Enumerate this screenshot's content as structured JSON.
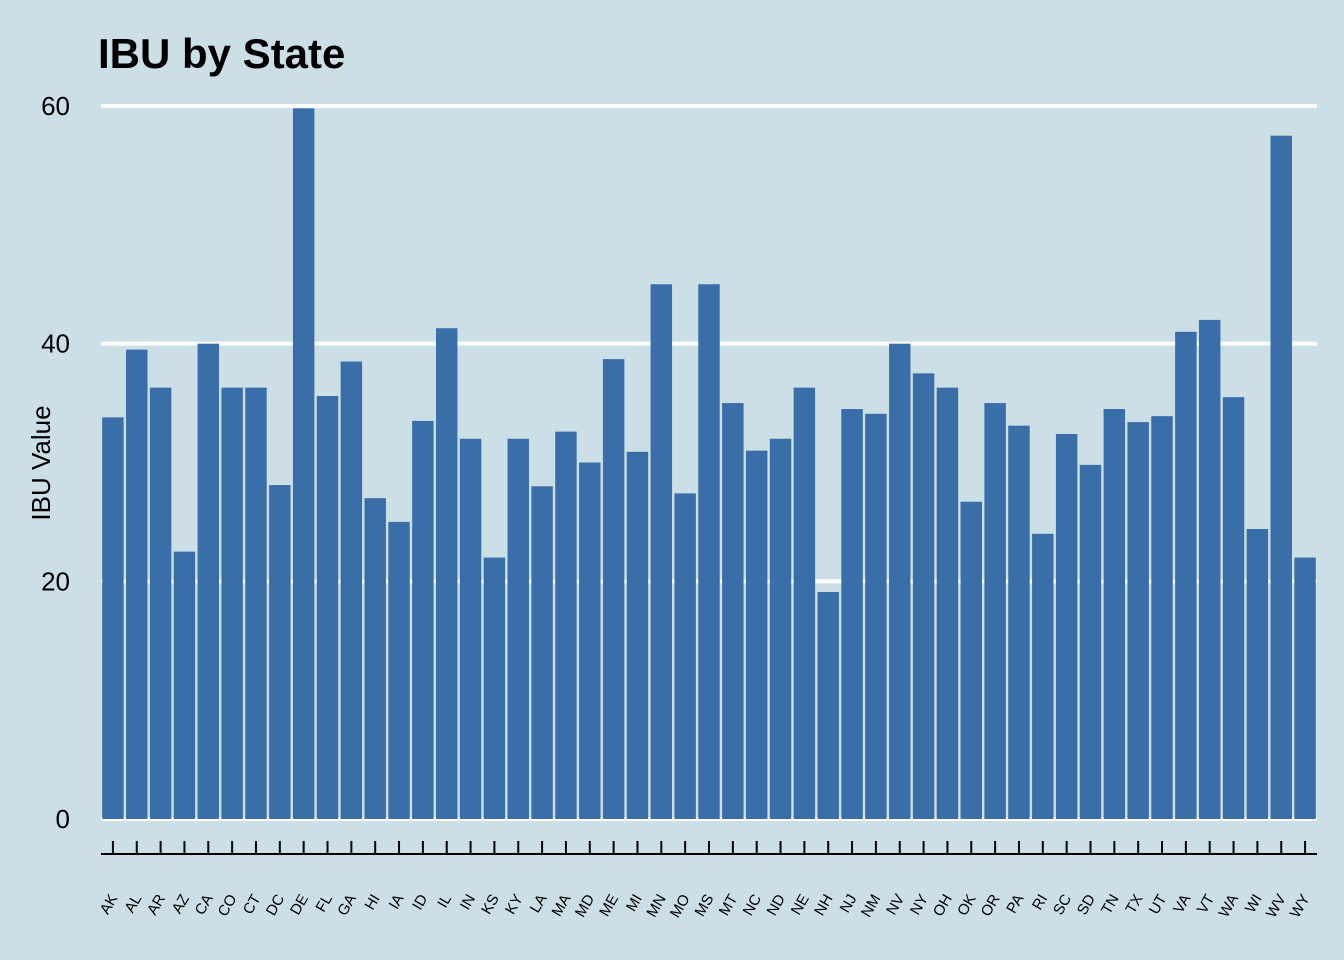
{
  "chart_data": {
    "type": "bar",
    "title": "IBU by State",
    "xlabel": "",
    "ylabel": "IBU Value",
    "ylim": [
      0,
      60
    ],
    "yticks": [
      0,
      20,
      40,
      60
    ],
    "grid": "horizontal",
    "bar_color": "#3a6ea8",
    "background_color": "#cddfe6",
    "categories": [
      "AK",
      "AL",
      "AR",
      "AZ",
      "CA",
      "CO",
      "CT",
      "DC",
      "DE",
      "FL",
      "GA",
      "HI",
      "IA",
      "ID",
      "IL",
      "IN",
      "KS",
      "KY",
      "LA",
      "MA",
      "MD",
      "ME",
      "MI",
      "MN",
      "MO",
      "MS",
      "MT",
      "NC",
      "ND",
      "NE",
      "NH",
      "NJ",
      "NM",
      "NV",
      "NY",
      "OH",
      "OK",
      "OR",
      "PA",
      "RI",
      "SC",
      "SD",
      "TN",
      "TX",
      "UT",
      "VA",
      "VT",
      "WA",
      "WI",
      "WV",
      "WY"
    ],
    "values": [
      33.8,
      39.5,
      36.3,
      22.5,
      40,
      36.3,
      36.3,
      28.1,
      59.8,
      35.6,
      38.5,
      27,
      25,
      33.5,
      41.3,
      32,
      22,
      32,
      28,
      32.6,
      30,
      38.7,
      30.9,
      45,
      27.4,
      45,
      35,
      31,
      32,
      36.3,
      19.1,
      34.5,
      34.1,
      40,
      37.5,
      36.3,
      26.7,
      35,
      33.1,
      24,
      32.4,
      29.8,
      34.5,
      33.4,
      33.9,
      41,
      42,
      35.5,
      24.4,
      57.5,
      22
    ]
  }
}
